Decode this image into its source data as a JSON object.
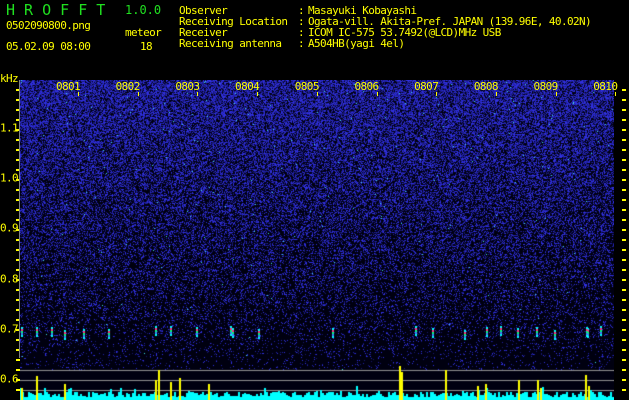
{
  "header": {
    "app_title": "H R O F F T",
    "version": "1.0.0",
    "filename": "0502090800.png",
    "datetime": "05.02.09 08:00",
    "meteor_label": "meteor",
    "meteor_count": "18"
  },
  "info": [
    {
      "label": "Observer",
      "value": "Masayuki Kobayashi"
    },
    {
      "label": "Receiving Location",
      "value": "Ogata-vill. Akita-Pref. JAPAN (139.96E, 40.02N)"
    },
    {
      "label": "Receiver",
      "value": "ICOM IC-575 53.7492(@LCD)MHz USB"
    },
    {
      "label": "Receiving antenna",
      "value": "A504HB(yagi 4el)"
    }
  ],
  "colors": {
    "text": "#ffff00",
    "title": "#20e020",
    "noise": "#2020c0",
    "histogram": "#00ffff",
    "spike": "#ffff00"
  },
  "chart_data": {
    "type": "heatmap",
    "ylabel": "kHz",
    "y_ticks": [
      "1.1",
      "1.0",
      "0.9",
      "0.8",
      "0.7",
      "0.6"
    ],
    "y_tick_values": [
      1.1,
      1.0,
      0.9,
      0.8,
      0.7,
      0.6
    ],
    "x_ticks": [
      "0801",
      "0802",
      "0803",
      "0804",
      "0805",
      "0806",
      "0807",
      "0808",
      "0809",
      "0810"
    ],
    "ylim": [
      0.58,
      1.2
    ],
    "meteor_count": 18
  }
}
